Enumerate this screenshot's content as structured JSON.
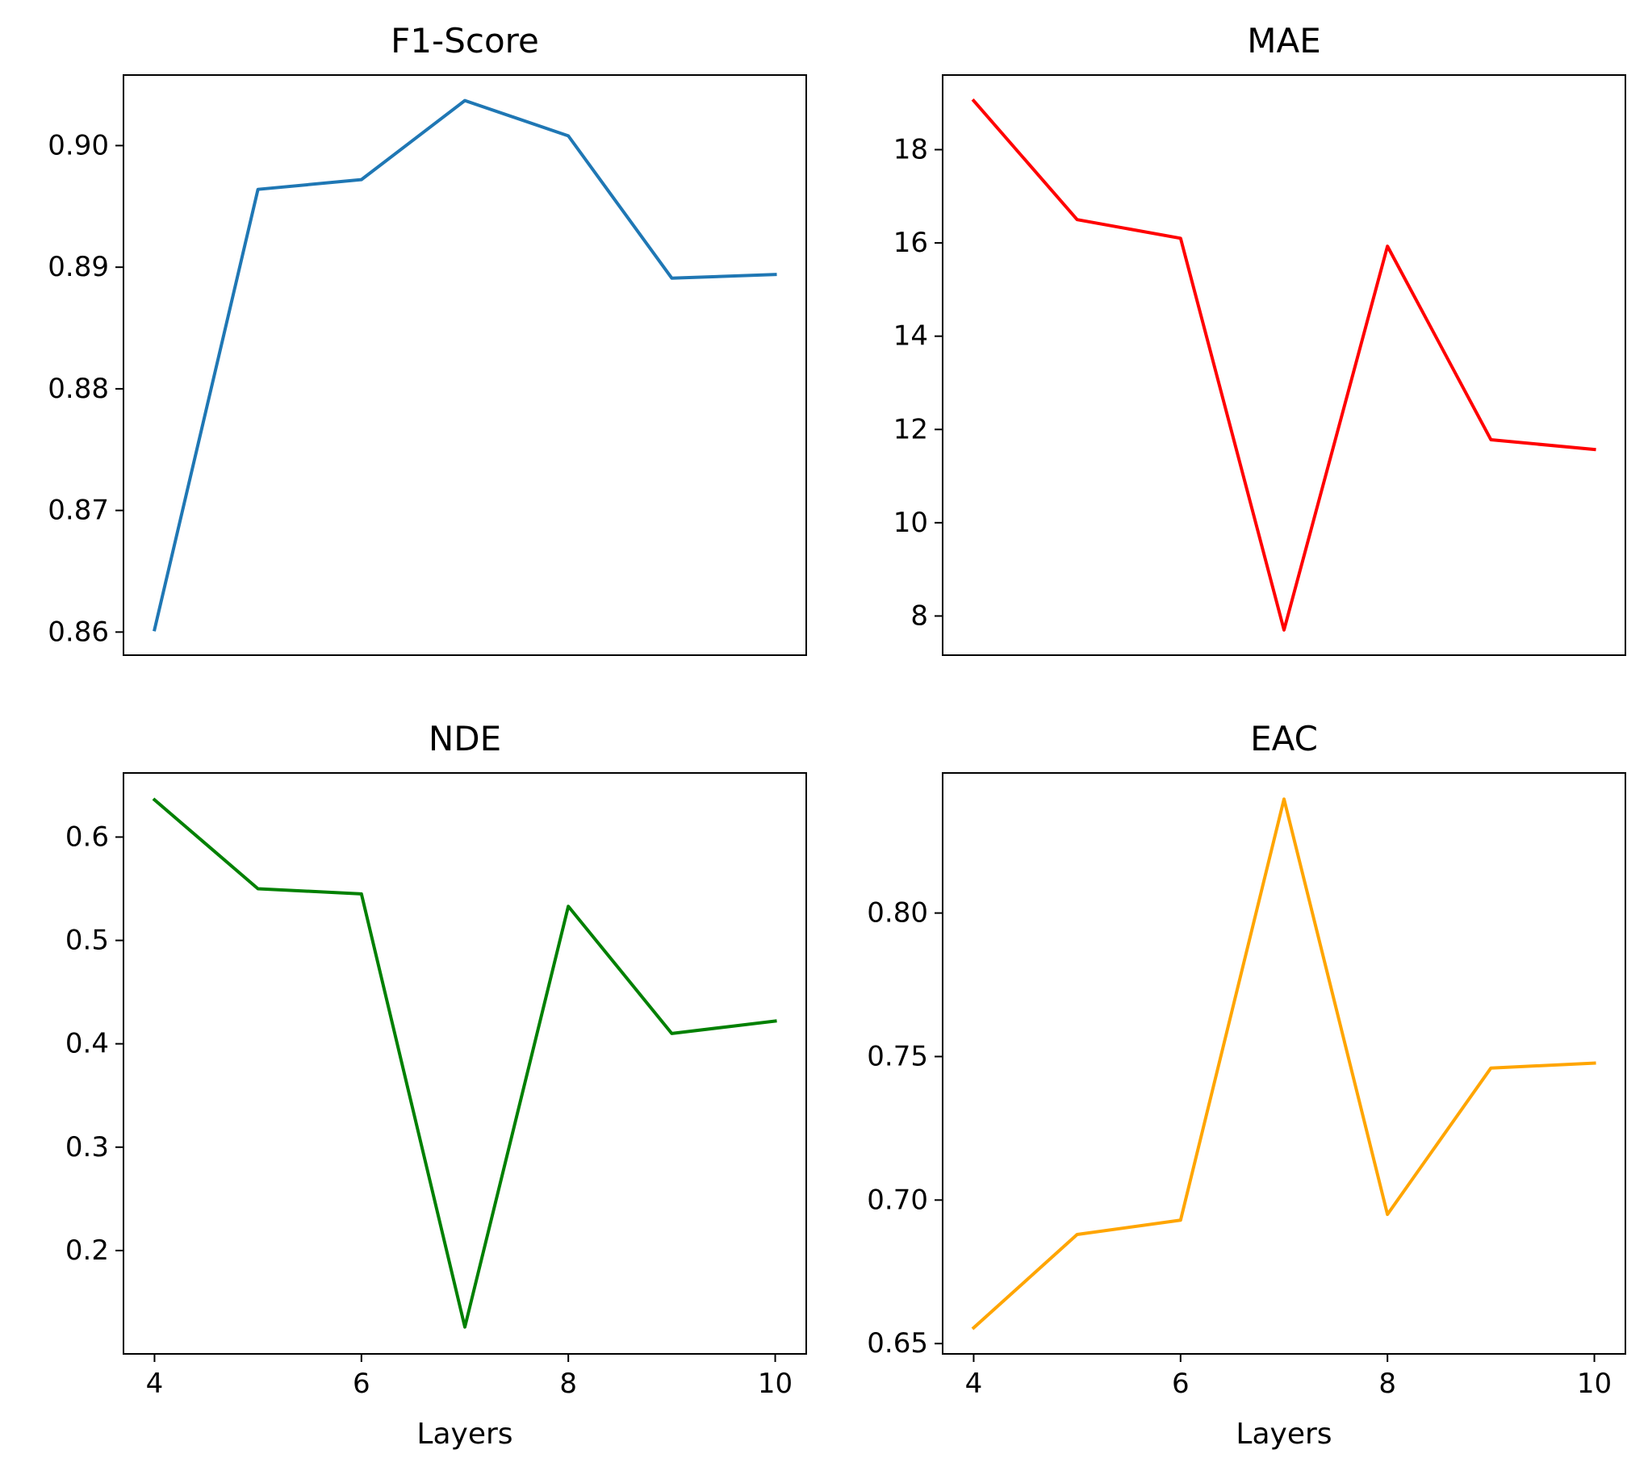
{
  "figure": {
    "background": "#ffffff"
  },
  "chart_data": [
    {
      "type": "line",
      "title": "F1-Score",
      "xlabel": "",
      "ylabel": "",
      "x": [
        4,
        5,
        6,
        7,
        8,
        9,
        10
      ],
      "series": [
        {
          "values": [
            0.8602,
            0.8964,
            0.8972,
            0.9037,
            0.9008,
            0.8891,
            0.8894
          ],
          "color": "#1f77b4"
        }
      ],
      "xlim": [
        3.7,
        10.3
      ],
      "ylim": [
        0.8581,
        0.9058
      ],
      "yticks": [
        0.86,
        0.87,
        0.88,
        0.89,
        0.9
      ],
      "ytick_labels": [
        "0.86",
        "0.87",
        "0.88",
        "0.89",
        "0.90"
      ],
      "xticks": [],
      "xtick_labels": [],
      "grid": false,
      "legend": "none"
    },
    {
      "type": "line",
      "title": "MAE",
      "xlabel": "",
      "ylabel": "",
      "x": [
        4,
        5,
        6,
        7,
        8,
        9,
        10
      ],
      "series": [
        {
          "values": [
            19.05,
            16.5,
            16.1,
            7.7,
            15.93,
            11.78,
            11.57
          ],
          "color": "#ff0000"
        }
      ],
      "xlim": [
        3.7,
        10.3
      ],
      "ylim": [
        7.16,
        19.6
      ],
      "yticks": [
        8,
        10,
        12,
        14,
        16,
        18
      ],
      "ytick_labels": [
        "8",
        "10",
        "12",
        "14",
        "16",
        "18"
      ],
      "xticks": [],
      "xtick_labels": [],
      "grid": false,
      "legend": "none"
    },
    {
      "type": "line",
      "title": "NDE",
      "xlabel": "Layers",
      "ylabel": "",
      "x": [
        4,
        5,
        6,
        7,
        8,
        9,
        10
      ],
      "series": [
        {
          "values": [
            0.636,
            0.55,
            0.545,
            0.126,
            0.533,
            0.41,
            0.422
          ],
          "color": "#008000"
        }
      ],
      "xlim": [
        3.7,
        10.3
      ],
      "ylim": [
        0.1,
        0.662
      ],
      "yticks": [
        0.2,
        0.3,
        0.4,
        0.5,
        0.6
      ],
      "ytick_labels": [
        "0.2",
        "0.3",
        "0.4",
        "0.5",
        "0.6"
      ],
      "xticks": [
        4,
        6,
        8,
        10
      ],
      "xtick_labels": [
        "4",
        "6",
        "8",
        "10"
      ],
      "grid": false,
      "legend": "none"
    },
    {
      "type": "line",
      "title": "EAC",
      "xlabel": "Layers",
      "ylabel": "",
      "x": [
        4,
        5,
        6,
        7,
        8,
        9,
        10
      ],
      "series": [
        {
          "values": [
            0.6555,
            0.688,
            0.693,
            0.8397,
            0.695,
            0.746,
            0.7477
          ],
          "color": "#ffa500"
        }
      ],
      "xlim": [
        3.7,
        10.3
      ],
      "ylim": [
        0.6464,
        0.8488
      ],
      "yticks": [
        0.65,
        0.7,
        0.75,
        0.8
      ],
      "ytick_labels": [
        "0.65",
        "0.70",
        "0.75",
        "0.80"
      ],
      "xticks": [
        4,
        6,
        8,
        10
      ],
      "xtick_labels": [
        "4",
        "6",
        "8",
        "10"
      ],
      "grid": false,
      "legend": "none"
    }
  ]
}
